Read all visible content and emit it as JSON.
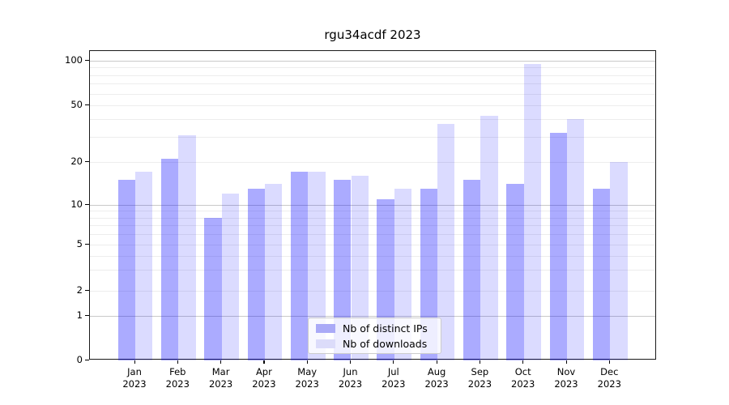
{
  "chart_data": {
    "type": "bar",
    "title": "rgu34acdf 2023",
    "categories": [
      "Jan 2023",
      "Feb 2023",
      "Mar 2023",
      "Apr 2023",
      "May 2023",
      "Jun 2023",
      "Jul 2023",
      "Aug 2023",
      "Sep 2023",
      "Oct 2023",
      "Nov 2023",
      "Dec 2023"
    ],
    "x_tick_labels": [
      {
        "month": "Jan",
        "year": "2023"
      },
      {
        "month": "Feb",
        "year": "2023"
      },
      {
        "month": "Mar",
        "year": "2023"
      },
      {
        "month": "Apr",
        "year": "2023"
      },
      {
        "month": "May",
        "year": "2023"
      },
      {
        "month": "Jun",
        "year": "2023"
      },
      {
        "month": "Jul",
        "year": "2023"
      },
      {
        "month": "Aug",
        "year": "2023"
      },
      {
        "month": "Sep",
        "year": "2023"
      },
      {
        "month": "Oct",
        "year": "2023"
      },
      {
        "month": "Nov",
        "year": "2023"
      },
      {
        "month": "Dec",
        "year": "2023"
      }
    ],
    "series": [
      {
        "name": "Nb of distinct IPs",
        "values": [
          15,
          21,
          8,
          13,
          17,
          15,
          11,
          13,
          15,
          14,
          32,
          13
        ],
        "color": "#0000ff54",
        "legend_color": "#aaaaf7"
      },
      {
        "name": "Nb of downloads",
        "values": [
          17,
          31,
          12,
          14,
          17,
          16,
          13,
          37,
          42,
          95,
          40,
          20
        ],
        "color": "#0000ff24",
        "legend_color": "#dcdcfa"
      }
    ],
    "y_axis": {
      "scale": "symlog",
      "ticks": [
        0,
        1,
        2,
        5,
        10,
        20,
        50,
        100
      ],
      "major_gridlines": [
        1,
        10,
        100
      ],
      "minor_gridlines": [
        2,
        3,
        4,
        5,
        6,
        7,
        8,
        9,
        20,
        30,
        40,
        50,
        60,
        70,
        80,
        90
      ],
      "ylim": [
        0,
        115
      ]
    },
    "legend_position": "bottom-center",
    "grid": true
  }
}
